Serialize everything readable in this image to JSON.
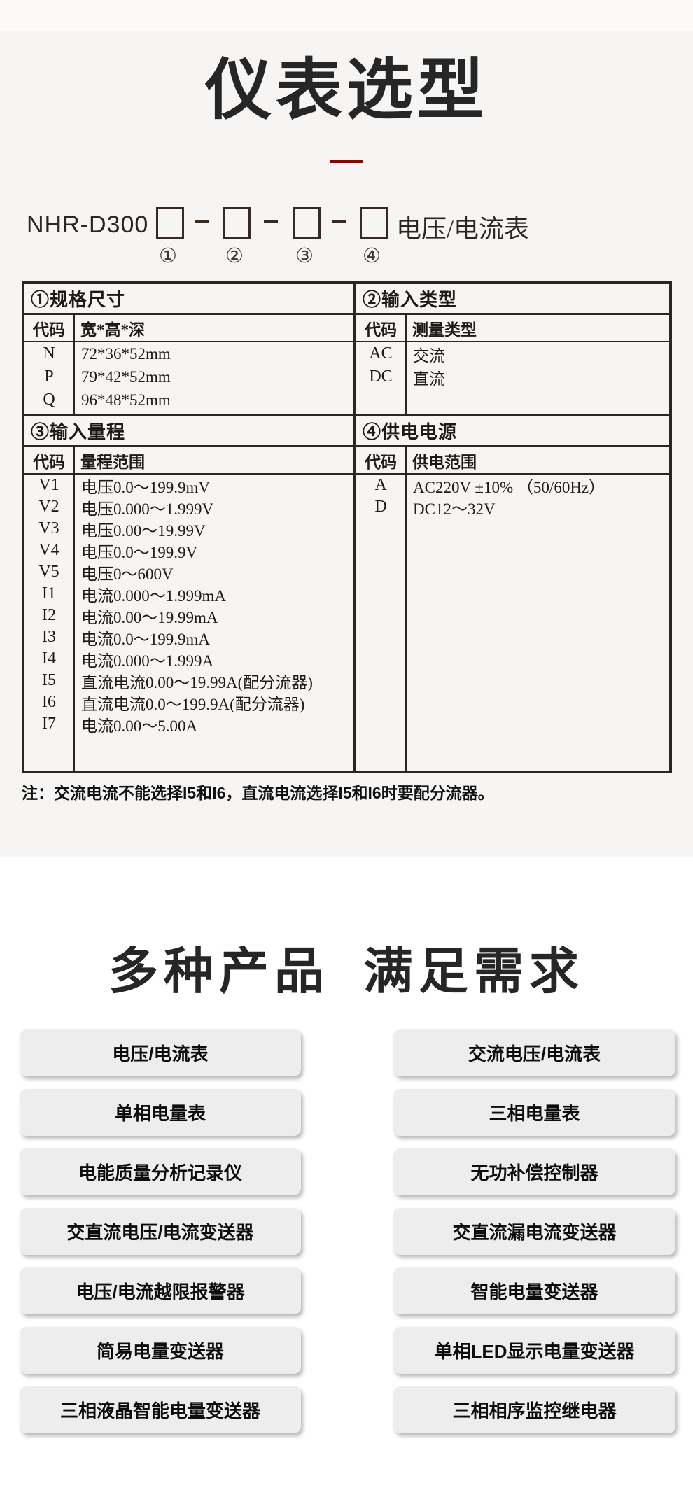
{
  "colors": {
    "accent_red": "#7d0a06",
    "table_border": "#2f2520",
    "section_bg": "#f6f5f3",
    "top_strip_bg": "#fcf9f9",
    "button_bg": "#ededed"
  },
  "selection": {
    "title": "仪表选型",
    "model": {
      "prefix": "NHR-D300",
      "suffix": "电压/电流表",
      "position_markers": [
        "①",
        "②",
        "③",
        "④"
      ]
    },
    "note": "注：交流电流不能选择I5和I6，直流电流选择I5和I6时要配分流器。"
  },
  "spec_table": {
    "size": {
      "header": "①规格尺寸",
      "code_label": "代码",
      "value_label": "宽*高*深",
      "codes": [
        "N",
        "P",
        "Q"
      ],
      "values": [
        "72*36*52mm",
        "79*42*52mm",
        "96*48*52mm"
      ]
    },
    "input_type": {
      "header": "②输入类型",
      "code_label": "代码",
      "value_label": "测量类型",
      "codes": [
        "AC",
        "DC"
      ],
      "values": [
        "交流",
        "直流"
      ]
    },
    "input_range": {
      "header": "③输入量程",
      "code_label": "代码",
      "value_label": "量程范围",
      "codes": [
        "V1",
        "V2",
        "V3",
        "V4",
        "V5",
        "I1",
        "I2",
        "I3",
        "I4",
        "I5",
        "I6",
        "I7"
      ],
      "values": [
        "电压0.0～199.9mV",
        "电压0.000～1.999V",
        "电压0.00～19.99V",
        "电压0.0～199.9V",
        "电压0～600V",
        "电流0.000～1.999mA",
        "电流0.00～19.99mA",
        "电流0.0～199.9mA",
        "电流0.000～1.999A",
        "直流电流0.00～19.99A(配分流器)",
        "直流电流0.0～199.9A(配分流器)",
        "电流0.00～5.00A"
      ]
    },
    "power": {
      "header": "④供电电源",
      "code_label": "代码",
      "value_label": "供电范围",
      "codes": [
        "A",
        "D"
      ],
      "values": [
        "AC220V ±10% （50/60Hz）",
        "DC12～32V"
      ]
    }
  },
  "products": {
    "heading_left": "多种产品",
    "heading_right": "满足需求",
    "left": [
      "电压/电流表",
      "单相电量表",
      "电能质量分析记录仪",
      "交直流电压/电流变送器",
      "电压/电流越限报警器",
      "简易电量变送器",
      "三相液晶智能电量变送器"
    ],
    "right": [
      "交流电压/电流表",
      "三相电量表",
      "无功补偿控制器",
      "交直流漏电流变送器",
      "智能电量变送器",
      "单相LED显示电量变送器",
      "三相相序监控继电器"
    ]
  }
}
